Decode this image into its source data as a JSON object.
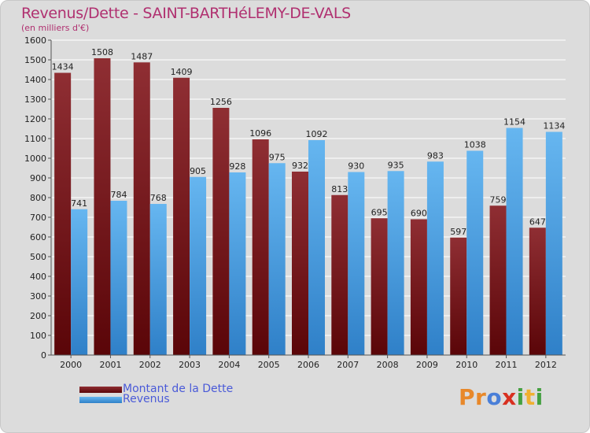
{
  "colors": {
    "dette": "#6e1014",
    "dette_light": "#8f2e33",
    "revenus": "#3a92dc",
    "revenus_light": "#66b6f0",
    "grid": "#ffffff",
    "axis": "#555555",
    "title": "#b03070",
    "legend_text": "#4a5ad8"
  },
  "logo": {
    "text": "Proxiti",
    "letters": [
      {
        "char": "P",
        "color": "#e8882a"
      },
      {
        "char": "r",
        "color": "#e8882a"
      },
      {
        "char": "o",
        "color": "#4a7fd8"
      },
      {
        "char": "x",
        "color": "#d83020"
      },
      {
        "char": "i",
        "color": "#44a040"
      },
      {
        "char": "t",
        "color": "#f0b030"
      },
      {
        "char": "i",
        "color": "#44a040"
      }
    ]
  },
  "chart_data": {
    "type": "bar",
    "title": "Revenus/Dette - SAINT-BARTHéLEMY-DE-VALS",
    "subtitle": "(en milliers d'€)",
    "xlabel": "",
    "ylabel": "",
    "ylim": [
      0,
      1600
    ],
    "ytick_step": 100,
    "yticks": [
      0,
      100,
      200,
      300,
      400,
      500,
      600,
      700,
      800,
      900,
      1000,
      1100,
      1200,
      1300,
      1400,
      1500,
      1600
    ],
    "grid": true,
    "legend_position": "bottom-left",
    "categories": [
      "2000",
      "2001",
      "2002",
      "2003",
      "2004",
      "2005",
      "2006",
      "2007",
      "2008",
      "2009",
      "2010",
      "2011",
      "2012"
    ],
    "series": [
      {
        "name": "Montant de la Dette",
        "values": [
          1434,
          1508,
          1487,
          1409,
          1256,
          1096,
          932,
          813,
          695,
          690,
          597,
          759,
          647
        ]
      },
      {
        "name": "Revenus",
        "values": [
          741,
          784,
          768,
          905,
          928,
          975,
          1092,
          930,
          935,
          983,
          1038,
          1154,
          1134
        ]
      }
    ]
  }
}
